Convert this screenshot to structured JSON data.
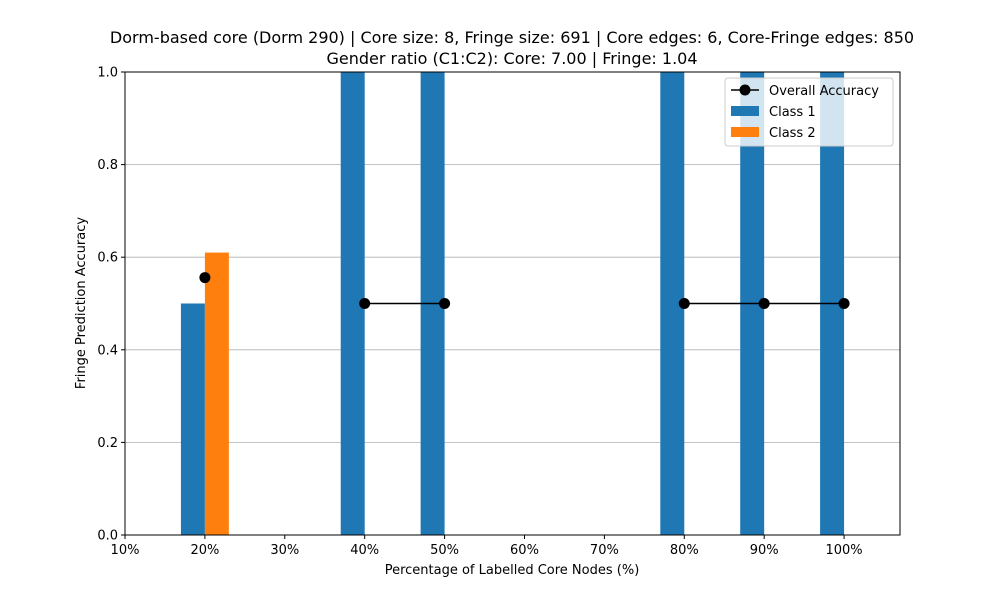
{
  "chart_data": {
    "type": "bar",
    "title": "Dorm-based core (Dorm 290) | Core size: 8, Fringe size: 691 | Core edges: 6, Core-Fringe edges: 850",
    "subtitle": "Gender ratio (C1:C2): Core: 7.00 | Fringe: 1.04",
    "xlabel": "Percentage of Labelled Core Nodes (%)",
    "ylabel": "Fringe Prediction Accuracy",
    "x_ticks": [
      10,
      20,
      30,
      40,
      50,
      60,
      70,
      80,
      90,
      100
    ],
    "x_tick_labels": [
      "10%",
      "20%",
      "30%",
      "40%",
      "50%",
      "60%",
      "70%",
      "80%",
      "90%",
      "100%"
    ],
    "xlim": [
      10,
      107
    ],
    "ylim": [
      0,
      1.0
    ],
    "y_ticks": [
      0.0,
      0.2,
      0.4,
      0.6,
      0.8,
      1.0
    ],
    "y_tick_labels": [
      "0.0",
      "0.2",
      "0.4",
      "0.6",
      "0.8",
      "1.0"
    ],
    "grid": "y",
    "legend_position": "top-right",
    "x": [
      20,
      40,
      50,
      80,
      90,
      100
    ],
    "series": [
      {
        "name": "Class 1",
        "kind": "bar",
        "color": "#1f77b4",
        "values": [
          0.5,
          1.0,
          1.0,
          1.0,
          1.0,
          1.0
        ]
      },
      {
        "name": "Class 2",
        "kind": "bar",
        "color": "#ff7f0e",
        "values": [
          0.61,
          0.0,
          0.0,
          0.0,
          0.0,
          0.0
        ]
      }
    ],
    "line_series": {
      "name": "Overall Accuracy",
      "kind": "line",
      "color": "#000000",
      "segments": [
        [
          {
            "x": 20,
            "y": 0.556
          }
        ],
        [
          {
            "x": 40,
            "y": 0.5
          },
          {
            "x": 50,
            "y": 0.5
          }
        ],
        [
          {
            "x": 80,
            "y": 0.5
          },
          {
            "x": 90,
            "y": 0.5
          },
          {
            "x": 100,
            "y": 0.5
          }
        ]
      ]
    },
    "legend": [
      "Overall Accuracy",
      "Class 1",
      "Class 2"
    ]
  }
}
